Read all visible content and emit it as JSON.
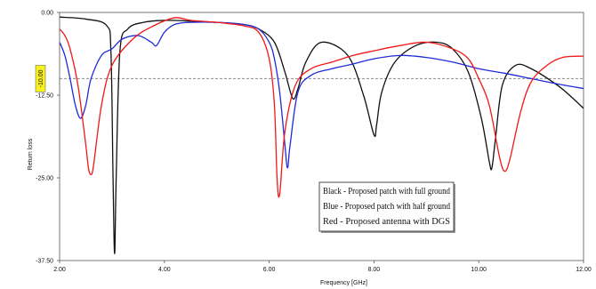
{
  "chart_data": {
    "type": "line",
    "xlabel": "Frequency [GHz]",
    "ylabel": "Return loss",
    "xlim": [
      2.0,
      12.0
    ],
    "ylim": [
      -37.5,
      0.0
    ],
    "x_ticks": [
      "2.00",
      "4.00",
      "6.00",
      "8.00",
      "10.00",
      "12.00"
    ],
    "y_ticks": [
      "0.00",
      "-12.50",
      "-25.00",
      "-37.50"
    ],
    "reference_line": {
      "y": -10.0,
      "label": "-10.00",
      "style": "dashed"
    },
    "grid": false,
    "legend_position": "lower-center",
    "legend": [
      "Black - Proposed patch with full ground",
      "Blue - Proposed patch with half ground",
      "Red - Proposed antenna with DGS"
    ],
    "series": [
      {
        "color": "#111111",
        "x": [
          2.0,
          2.5,
          2.9,
          2.98,
          3.02,
          3.05,
          3.08,
          3.15,
          3.3,
          3.6,
          4.0,
          4.5,
          5.0,
          5.5,
          5.8,
          6.1,
          6.3,
          6.45,
          6.55,
          6.7,
          7.0,
          7.5,
          7.8,
          8.0,
          8.05,
          8.15,
          8.4,
          8.8,
          9.2,
          9.5,
          9.8,
          10.05,
          10.2,
          10.25,
          10.32,
          10.45,
          10.7,
          11.0,
          11.5,
          11.8,
          12.0
        ],
        "y": [
          -0.7,
          -1.0,
          -2.0,
          -6.0,
          -25.0,
          -36.5,
          -25.0,
          -6.0,
          -2.5,
          -1.5,
          -1.2,
          -1.3,
          -1.5,
          -1.8,
          -2.5,
          -4.5,
          -9.0,
          -13.0,
          -11.5,
          -7.5,
          -4.5,
          -6.5,
          -12.5,
          -18.5,
          -17.0,
          -12.0,
          -7.5,
          -5.0,
          -4.5,
          -5.5,
          -9.0,
          -16.0,
          -22.5,
          -23.5,
          -19.0,
          -11.0,
          -8.0,
          -8.5,
          -11.0,
          -13.0,
          -14.5
        ]
      },
      {
        "color": "#1f2bd6",
        "x": [
          2.0,
          2.1,
          2.2,
          2.3,
          2.4,
          2.5,
          2.6,
          2.8,
          3.0,
          3.2,
          3.5,
          3.75,
          3.85,
          4.0,
          4.2,
          4.5,
          5.0,
          5.5,
          5.8,
          6.0,
          6.1,
          6.2,
          6.3,
          6.35,
          6.4,
          6.55,
          6.8,
          7.2,
          7.6,
          8.0,
          8.5,
          9.0,
          9.5,
          10.0,
          10.5,
          11.0,
          11.5,
          12.0
        ],
        "y": [
          -4.5,
          -6.5,
          -10.0,
          -14.0,
          -16.0,
          -14.0,
          -10.0,
          -6.5,
          -5.5,
          -4.0,
          -3.5,
          -4.5,
          -5.0,
          -3.0,
          -1.8,
          -1.5,
          -1.5,
          -1.8,
          -2.5,
          -4.5,
          -7.0,
          -12.0,
          -20.0,
          -23.5,
          -20.0,
          -12.0,
          -9.5,
          -8.5,
          -7.8,
          -7.0,
          -6.5,
          -6.8,
          -7.5,
          -8.5,
          -9.2,
          -10.0,
          -10.8,
          -11.5
        ]
      },
      {
        "color": "#f01818",
        "x": [
          2.0,
          2.1,
          2.2,
          2.35,
          2.5,
          2.55,
          2.6,
          2.65,
          2.8,
          3.0,
          3.4,
          3.8,
          4.2,
          4.5,
          5.0,
          5.5,
          5.8,
          6.0,
          6.1,
          6.15,
          6.2,
          6.3,
          6.5,
          6.8,
          7.2,
          7.6,
          8.0,
          8.5,
          9.0,
          9.5,
          9.8,
          10.0,
          10.2,
          10.4,
          10.5,
          10.6,
          10.8,
          11.0,
          11.3,
          11.6,
          12.0
        ],
        "y": [
          -2.5,
          -3.5,
          -5.5,
          -11.0,
          -20.0,
          -23.5,
          -24.5,
          -23.0,
          -14.0,
          -8.0,
          -4.0,
          -2.0,
          -0.8,
          -1.2,
          -1.5,
          -2.0,
          -3.0,
          -7.0,
          -14.0,
          -25.0,
          -27.5,
          -18.0,
          -11.0,
          -8.5,
          -7.5,
          -6.5,
          -5.8,
          -5.0,
          -4.5,
          -5.5,
          -7.0,
          -10.0,
          -14.0,
          -22.0,
          -24.0,
          -22.0,
          -15.0,
          -10.5,
          -8.0,
          -6.8,
          -6.6
        ]
      }
    ]
  }
}
